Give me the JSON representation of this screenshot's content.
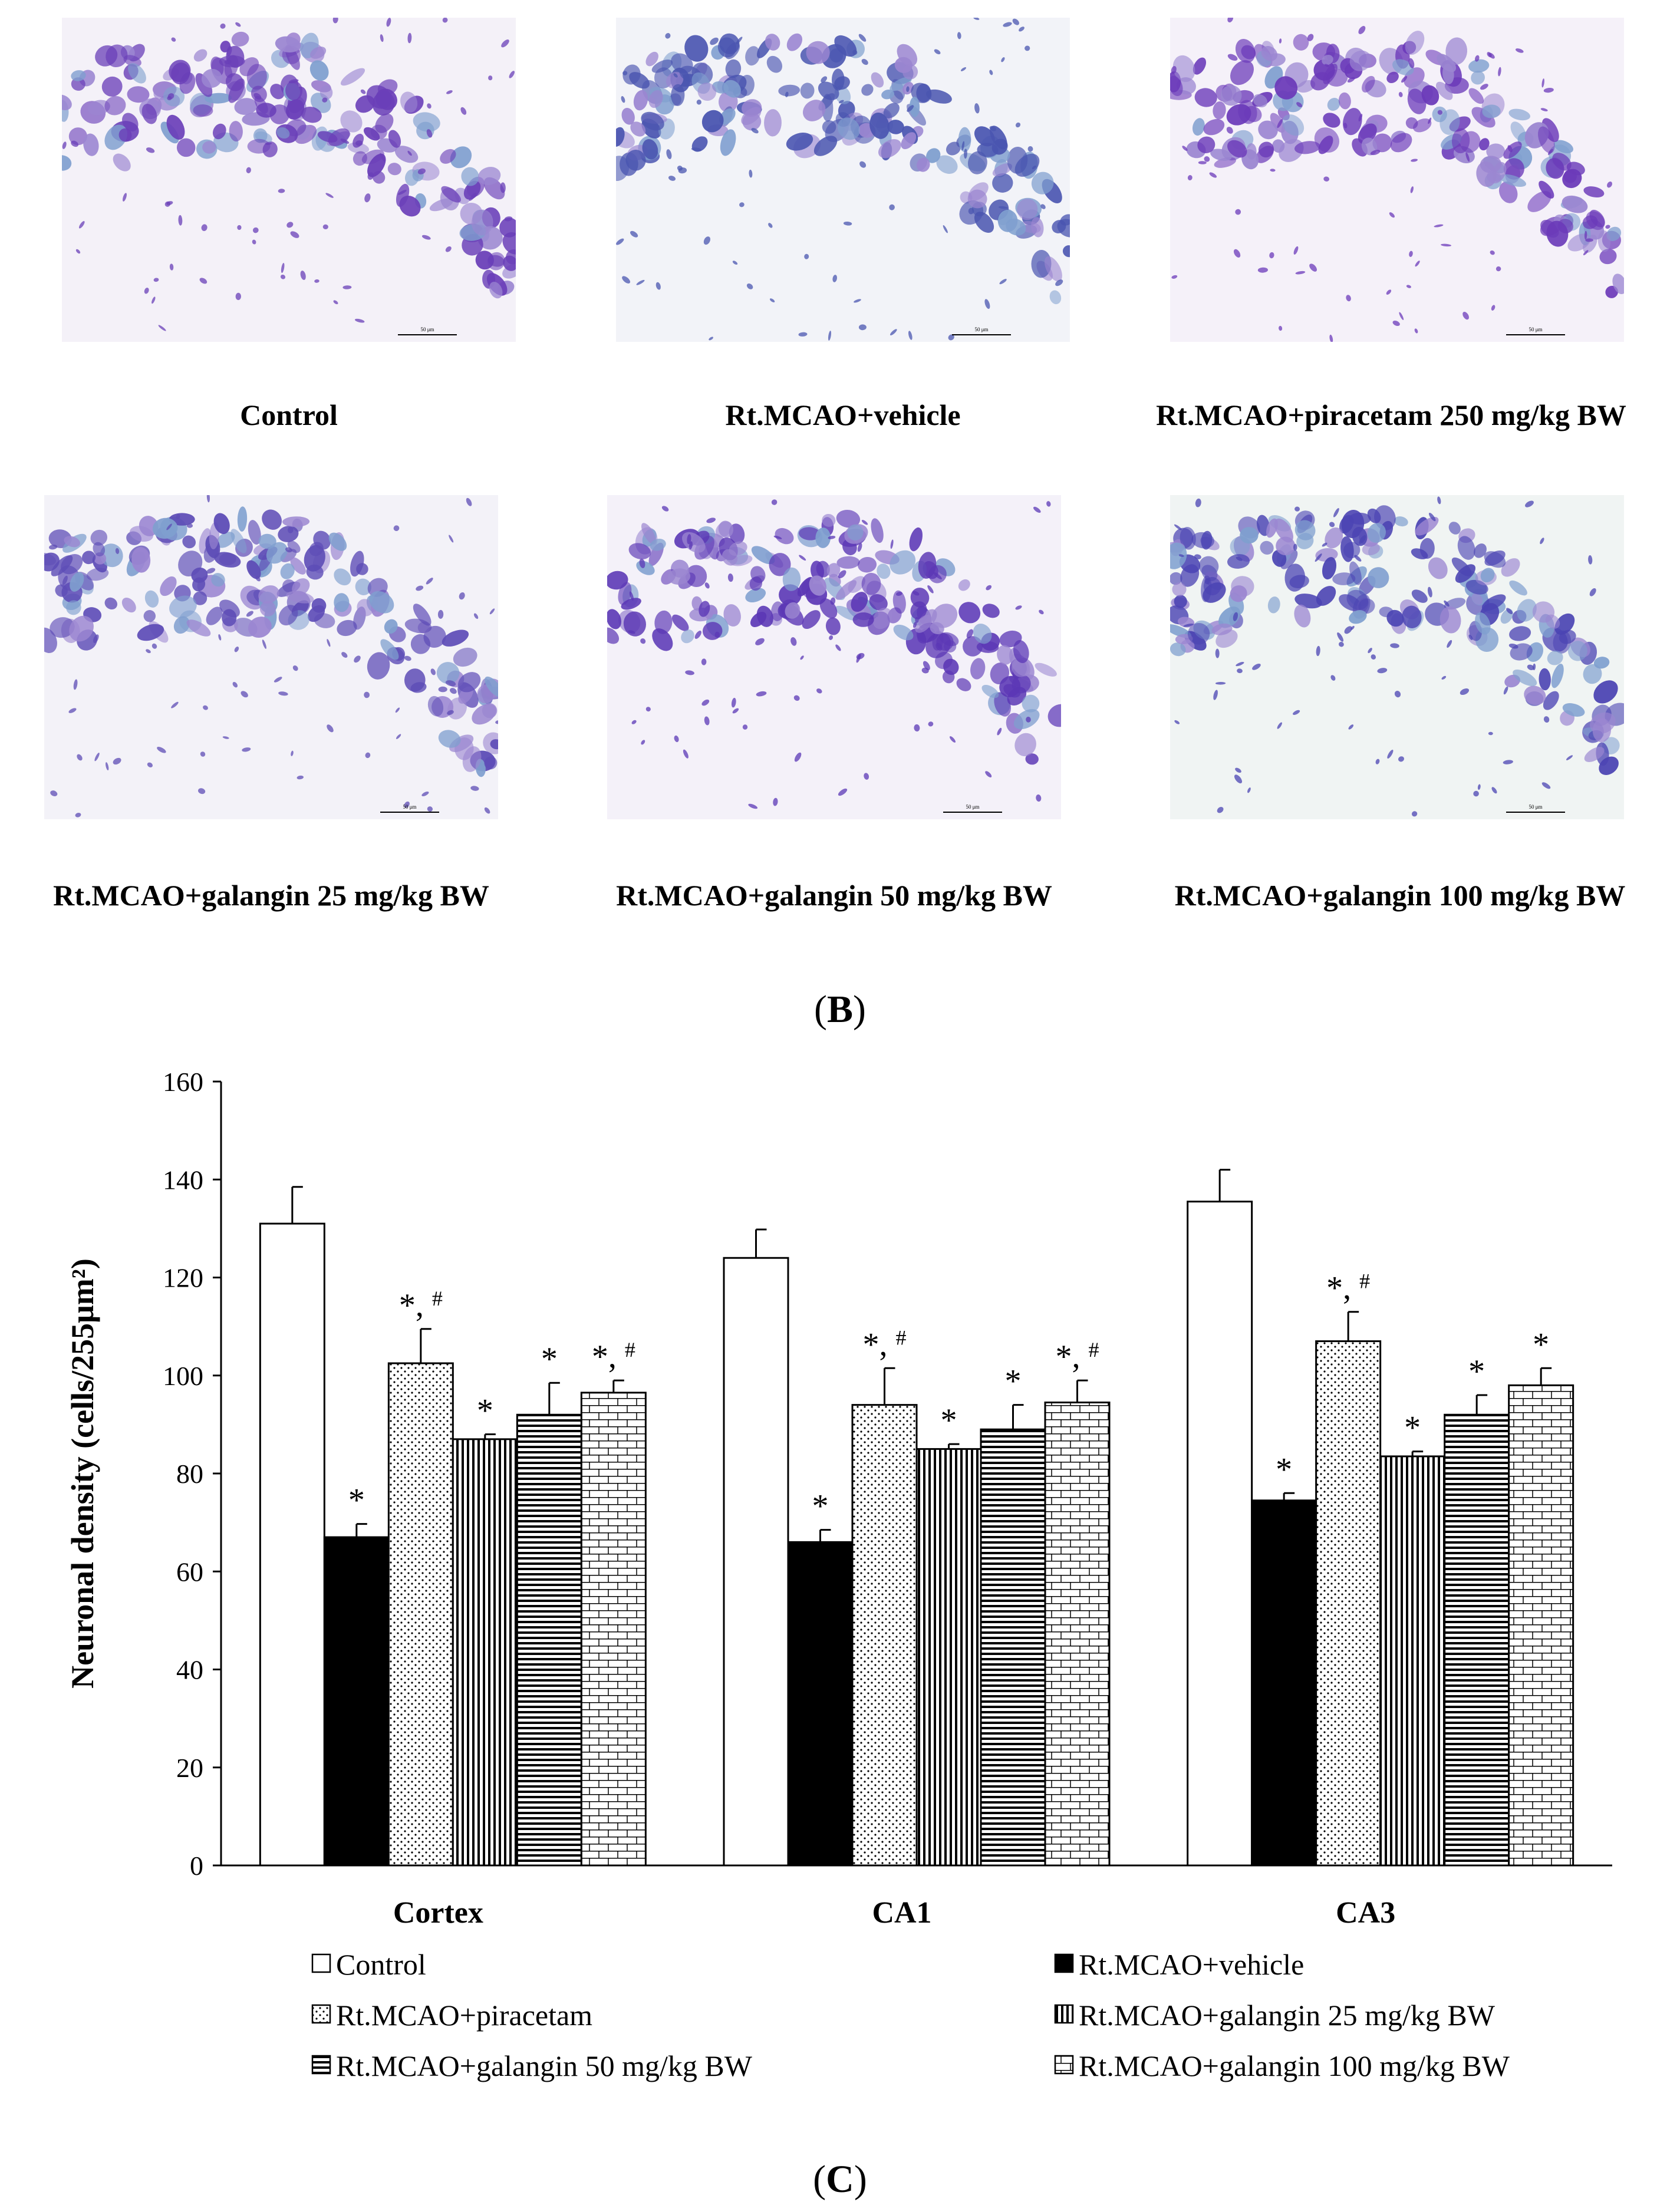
{
  "micrographs": [
    {
      "caption": "Control",
      "scale_text": "50 μm",
      "tint": "#f4f1f8",
      "accent": "#6a3fb8",
      "seed": 11
    },
    {
      "caption": "Rt.MCAO+vehicle",
      "scale_text": "50 μm",
      "tint": "#f2f3f8",
      "accent": "#4a55b0",
      "seed": 23
    },
    {
      "caption": "Rt.MCAO+piracetam 250 mg/kg BW",
      "scale_text": "50 μm",
      "tint": "#f5f1f9",
      "accent": "#6b3ab9",
      "seed": 37
    },
    {
      "caption": "Rt.MCAO+galangin 25 mg/kg BW",
      "scale_text": "50 μm",
      "tint": "#f3f2f8",
      "accent": "#5d4cb6",
      "seed": 41
    },
    {
      "caption": "Rt.MCAO+galangin 50 mg/kg BW",
      "scale_text": "50 μm",
      "tint": "#f4f1f9",
      "accent": "#5b37b5",
      "seed": 53
    },
    {
      "caption": "Rt.MCAO+galangin 100 mg/kg BW",
      "scale_text": "50 μm",
      "tint": "#f0f4f3",
      "accent": "#4b44b3",
      "seed": 67
    }
  ],
  "panel_labels": {
    "b_open": "(",
    "b_letter": "B",
    "b_close": ")",
    "c_open": "(",
    "c_letter": "C",
    "c_close": ")"
  },
  "colors": {
    "micro_cell": "#6a3fb8",
    "micro_cell_light": "#9b86d1",
    "micro_cell_blue": "#7f9fcf"
  },
  "chart_data": {
    "type": "bar",
    "title": "",
    "xlabel": "",
    "ylabel": "Neuronal density (cells/255μm²)",
    "ylim": [
      0,
      160
    ],
    "yticks": [
      0,
      20,
      40,
      60,
      80,
      100,
      120,
      140,
      160
    ],
    "categories": [
      "Cortex",
      "CA1",
      "CA3"
    ],
    "series": [
      {
        "name": "Control",
        "pattern": "white",
        "values": [
          131,
          124,
          135.5
        ],
        "errors": [
          7.5,
          5.8,
          6.5
        ],
        "annotations": [
          "",
          "",
          ""
        ]
      },
      {
        "name": "Rt.MCAO+vehicle",
        "pattern": "black",
        "values": [
          67,
          66,
          74.5
        ],
        "errors": [
          2.7,
          2.5,
          1.5
        ],
        "annotations": [
          "*",
          "*",
          "*"
        ]
      },
      {
        "name": "Rt.MCAO+piracetam",
        "pattern": "dots",
        "values": [
          102.5,
          94,
          107
        ],
        "errors": [
          7,
          7.5,
          6
        ],
        "annotations": [
          "*, #",
          "*, #",
          "*, #"
        ]
      },
      {
        "name": "Rt.MCAO+galangin 25 mg/kg BW",
        "pattern": "vlines",
        "values": [
          87,
          85,
          83.5
        ],
        "errors": [
          1,
          1,
          1
        ],
        "annotations": [
          "*",
          "*",
          "*"
        ]
      },
      {
        "name": "Rt.MCAO+galangin 50 mg/kg BW",
        "pattern": "hlines",
        "values": [
          92,
          89,
          92
        ],
        "errors": [
          6.5,
          5,
          4
        ],
        "annotations": [
          "*",
          "*",
          "*"
        ]
      },
      {
        "name": "Rt.MCAO+galangin 100 mg/kg BW",
        "pattern": "bricks",
        "values": [
          96.5,
          94.5,
          98
        ],
        "errors": [
          2.5,
          4.5,
          3.5
        ],
        "annotations": [
          "*, #",
          "*, #",
          "*"
        ]
      }
    ],
    "legend_position": "bottom"
  }
}
